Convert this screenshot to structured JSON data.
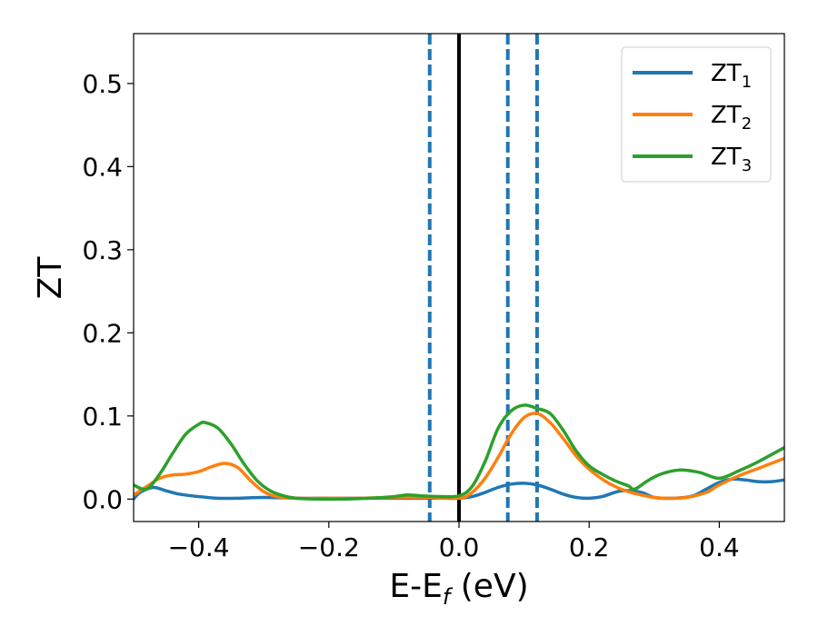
{
  "chart_data": {
    "type": "line",
    "xlabel": "E-E",
    "xlabel_sub": "f",
    "xlabel_unit": " (eV)",
    "ylabel": "ZT",
    "xlim": [
      -0.5,
      0.5
    ],
    "ylim": [
      -0.027,
      0.56
    ],
    "x_ticks": [
      -0.4,
      -0.2,
      0.0,
      0.2,
      0.4
    ],
    "x_tick_labels": [
      "−0.4",
      "−0.2",
      "0.0",
      "0.2",
      "0.4"
    ],
    "y_ticks": [
      0.0,
      0.1,
      0.2,
      0.3,
      0.4,
      0.5
    ],
    "y_tick_labels": [
      "0.0",
      "0.1",
      "0.2",
      "0.3",
      "0.4",
      "0.5"
    ],
    "grid": false,
    "legend_position": "top-right",
    "vertical_lines": [
      {
        "x": -0.045,
        "style": "dashed",
        "color": "#1f77b4"
      },
      {
        "x": 0.0,
        "style": "solid",
        "color": "#000000"
      },
      {
        "x": 0.075,
        "style": "dashed",
        "color": "#1f77b4"
      },
      {
        "x": 0.12,
        "style": "dashed",
        "color": "#1f77b4"
      }
    ],
    "series": [
      {
        "name": "ZT",
        "name_sub": "1",
        "color": "#1f77b4",
        "x": [
          -0.5,
          -0.49,
          -0.47,
          -0.45,
          -0.43,
          -0.4,
          -0.37,
          -0.34,
          -0.3,
          -0.25,
          -0.2,
          -0.15,
          -0.1,
          -0.05,
          -0.02,
          0.0,
          0.02,
          0.04,
          0.06,
          0.08,
          0.1,
          0.12,
          0.14,
          0.16,
          0.18,
          0.2,
          0.22,
          0.25,
          0.28,
          0.3,
          0.33,
          0.36,
          0.38,
          0.4,
          0.42,
          0.44,
          0.46,
          0.48,
          0.5
        ],
        "y": [
          0.0,
          0.008,
          0.014,
          0.01,
          0.006,
          0.003,
          0.001,
          0.001,
          0.002,
          0.001,
          0.001,
          0.001,
          0.001,
          0.001,
          0.001,
          0.001,
          0.003,
          0.008,
          0.014,
          0.018,
          0.019,
          0.017,
          0.012,
          0.006,
          0.002,
          0.001,
          0.003,
          0.01,
          0.008,
          0.002,
          0.001,
          0.004,
          0.012,
          0.02,
          0.024,
          0.023,
          0.021,
          0.021,
          0.023
        ]
      },
      {
        "name": "ZT",
        "name_sub": "2",
        "color": "#ff7f0e",
        "x": [
          -0.5,
          -0.48,
          -0.46,
          -0.44,
          -0.42,
          -0.4,
          -0.38,
          -0.36,
          -0.34,
          -0.32,
          -0.3,
          -0.28,
          -0.25,
          -0.2,
          -0.15,
          -0.1,
          -0.05,
          0.0,
          0.02,
          0.04,
          0.06,
          0.08,
          0.1,
          0.12,
          0.14,
          0.16,
          0.18,
          0.2,
          0.22,
          0.24,
          0.26,
          0.28,
          0.3,
          0.32,
          0.35,
          0.38,
          0.4,
          0.43,
          0.46,
          0.5
        ],
        "y": [
          0.005,
          0.015,
          0.025,
          0.029,
          0.03,
          0.033,
          0.039,
          0.043,
          0.038,
          0.022,
          0.009,
          0.003,
          0.001,
          0.001,
          0.001,
          0.002,
          0.002,
          0.001,
          0.008,
          0.025,
          0.05,
          0.078,
          0.098,
          0.103,
          0.092,
          0.073,
          0.052,
          0.036,
          0.024,
          0.015,
          0.009,
          0.005,
          0.002,
          0.001,
          0.002,
          0.008,
          0.017,
          0.028,
          0.037,
          0.049
        ]
      },
      {
        "name": "ZT",
        "name_sub": "3",
        "color": "#2ca02c",
        "x": [
          -0.5,
          -0.48,
          -0.46,
          -0.44,
          -0.42,
          -0.4,
          -0.39,
          -0.37,
          -0.35,
          -0.33,
          -0.31,
          -0.29,
          -0.27,
          -0.25,
          -0.22,
          -0.18,
          -0.14,
          -0.1,
          -0.08,
          -0.06,
          -0.03,
          0.0,
          0.02,
          0.04,
          0.06,
          0.08,
          0.1,
          0.12,
          0.14,
          0.16,
          0.18,
          0.2,
          0.22,
          0.24,
          0.26,
          0.27,
          0.29,
          0.31,
          0.34,
          0.37,
          0.4,
          0.43,
          0.46,
          0.5
        ],
        "y": [
          0.017,
          0.012,
          0.03,
          0.055,
          0.078,
          0.09,
          0.092,
          0.085,
          0.066,
          0.042,
          0.022,
          0.01,
          0.004,
          0.001,
          0.0,
          0.0,
          0.001,
          0.003,
          0.005,
          0.004,
          0.003,
          0.004,
          0.015,
          0.045,
          0.085,
          0.106,
          0.113,
          0.109,
          0.103,
          0.083,
          0.058,
          0.04,
          0.03,
          0.022,
          0.016,
          0.012,
          0.022,
          0.03,
          0.035,
          0.032,
          0.025,
          0.034,
          0.045,
          0.062
        ]
      }
    ]
  }
}
